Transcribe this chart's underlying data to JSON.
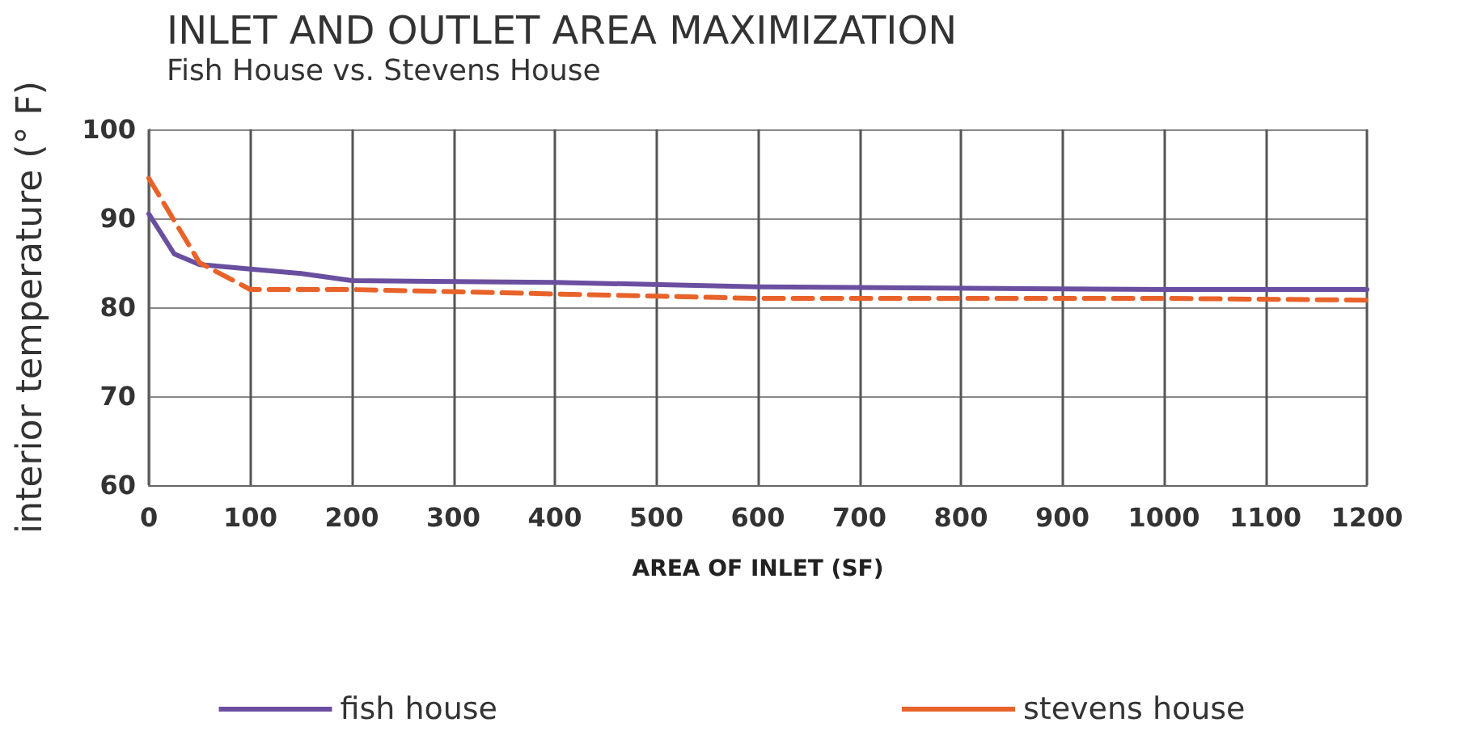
{
  "chart_data": {
    "type": "line",
    "title": "INLET AND OUTLET AREA MAXIMIZATION",
    "subtitle": "Fish House vs. Stevens House",
    "xlabel": "AREA OF INLET (SF)",
    "ylabel": "interior temperature (° F)",
    "xlim": [
      0,
      1200
    ],
    "xticks": [
      0,
      100,
      200,
      300,
      400,
      500,
      600,
      700,
      800,
      900,
      1000,
      1100,
      1200
    ],
    "ylim": [
      60,
      100
    ],
    "yticks": [
      60,
      70,
      80,
      90,
      100
    ],
    "grid": true,
    "legend": "bottom",
    "marker": "none",
    "series": [
      {
        "name": "fish house",
        "color": "#6a4fa0",
        "line_style": "solid",
        "x": [
          0,
          25,
          50,
          100,
          150,
          200,
          400,
          600,
          1000,
          1200
        ],
        "values": [
          90.5,
          86,
          84.8,
          84.3,
          83.8,
          83,
          82.8,
          82.3,
          82,
          82
        ]
      },
      {
        "name": "stevens house",
        "color": "#e8622a",
        "line_style": "dashed",
        "x": [
          0,
          50,
          100,
          200,
          400,
          600,
          1000,
          1200
        ],
        "values": [
          94.5,
          85,
          82,
          82,
          81.5,
          81,
          81,
          80.8
        ]
      }
    ]
  }
}
